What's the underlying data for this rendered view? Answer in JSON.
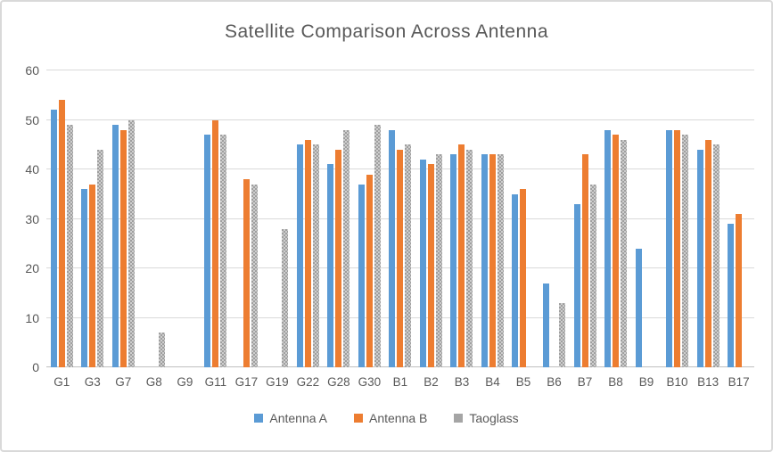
{
  "chart_data": {
    "type": "bar",
    "title": "Satellite Comparison Across Antenna",
    "categories": [
      "G1",
      "G3",
      "G7",
      "G8",
      "G9",
      "G11",
      "G17",
      "G19",
      "G22",
      "G28",
      "G30",
      "B1",
      "B2",
      "B3",
      "B4",
      "B5",
      "B6",
      "B7",
      "B8",
      "B9",
      "B10",
      "B13",
      "B17"
    ],
    "series": [
      {
        "name": "Antenna A",
        "color": "#5B9BD5",
        "patterned": false,
        "values": [
          52,
          36,
          49,
          null,
          null,
          47,
          null,
          null,
          45,
          41,
          37,
          48,
          42,
          43,
          43,
          35,
          17,
          33,
          48,
          24,
          48,
          44,
          29
        ]
      },
      {
        "name": "Antenna B",
        "color": "#ED7D31",
        "patterned": false,
        "values": [
          54,
          37,
          48,
          null,
          null,
          50,
          38,
          null,
          46,
          44,
          39,
          44,
          41,
          45,
          43,
          36,
          null,
          43,
          47,
          null,
          48,
          46,
          31
        ]
      },
      {
        "name": "Taoglass",
        "color": "#A5A5A5",
        "patterned": true,
        "values": [
          49,
          44,
          50,
          7,
          null,
          47,
          37,
          28,
          45,
          48,
          49,
          45,
          43,
          44,
          43,
          null,
          13,
          37,
          46,
          null,
          47,
          45,
          null
        ]
      }
    ],
    "xlabel": "",
    "ylabel": "",
    "ylim": [
      0,
      60
    ],
    "y_ticks": [
      0,
      10,
      20,
      30,
      40,
      50,
      60
    ],
    "grid": true,
    "legend_position": "bottom",
    "text_color": "#595959",
    "gridline_color": "#D9D9D9",
    "axis_line_color": "#BFBFBF"
  }
}
